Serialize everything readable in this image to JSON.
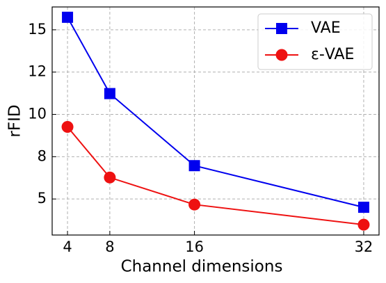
{
  "chart_data": {
    "type": "line",
    "xlabel": "Channel dimensions",
    "ylabel": "rFID",
    "xlim": [
      2.55,
      33.45
    ],
    "ylim": [
      2.87,
      16.35
    ],
    "xticks": [
      4,
      8,
      16,
      32
    ],
    "yticks": [
      5,
      {
        "value": 7.5,
        "label": "8"
      },
      10,
      {
        "value": 12.5,
        "label": "12"
      },
      15
    ],
    "grid": true,
    "legend": "upper right",
    "series": [
      {
        "name": "VAE",
        "color": "#0000ee",
        "marker": "square",
        "x": [
          4,
          8,
          16,
          32
        ],
        "values": [
          15.74,
          11.23,
          6.97,
          4.51
        ]
      },
      {
        "name": "ε-VAE",
        "color": "#ee1111",
        "marker": "circle",
        "x": [
          4,
          8,
          16,
          32
        ],
        "values": [
          9.26,
          6.27,
          4.67,
          3.48
        ]
      }
    ]
  }
}
